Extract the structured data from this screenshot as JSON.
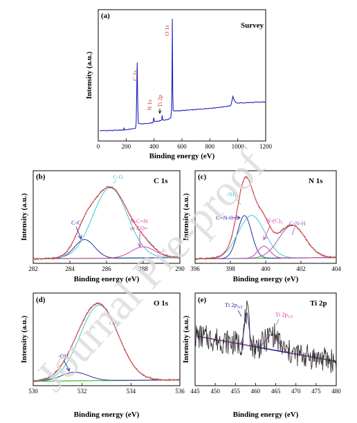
{
  "chart_data": [
    {
      "panel": "(a)",
      "type": "line",
      "title": "Survey",
      "xlabel": "Binding energy (eV)",
      "ylabel": "Intensity (a.u.)",
      "xlim": [
        0,
        1200
      ],
      "ylim": [
        0,
        100
      ],
      "xticks": [
        0,
        200,
        400,
        600,
        800,
        1000,
        1200
      ],
      "series": [
        {
          "color": "#1f1fbf",
          "x": [
            10,
            60,
            100,
            150,
            182,
            185,
            190,
            200,
            250,
            268,
            272,
            279,
            283,
            287,
            292,
            300,
            330,
            370,
            392,
            397,
            403,
            410,
            440,
            455,
            458,
            462,
            470,
            500,
            520,
            525,
            528,
            531,
            534,
            537,
            545,
            560,
            600,
            700,
            800,
            900,
            950,
            965,
            975,
            985,
            1000,
            1050,
            1100,
            1150,
            1200
          ],
          "y": [
            6,
            6.1,
            6.2,
            6.4,
            6.5,
            8.5,
            6.6,
            6.8,
            7.5,
            8,
            13,
            60,
            28,
            12,
            11.5,
            11.4,
            11.6,
            11.9,
            12.5,
            16,
            13.2,
            13.4,
            13.8,
            14.5,
            18,
            15,
            14.4,
            14.8,
            16.5,
            22,
            40,
            95,
            36,
            22,
            21.5,
            21.8,
            22,
            22.8,
            23.8,
            25,
            26,
            33,
            30,
            28.5,
            28,
            28.2,
            28.4,
            28.6,
            28.8
          ]
        }
      ],
      "annotations": [
        {
          "text": "C 1s",
          "x": 284,
          "color": "#c0392b"
        },
        {
          "text": "N 1s",
          "x": 399,
          "color": "#c0392b"
        },
        {
          "text": "Ti 2p",
          "x": 458,
          "color": "#c0392b"
        },
        {
          "text": "O 1s",
          "x": 531,
          "color": "#c0392b"
        }
      ]
    },
    {
      "panel": "(b)",
      "type": "line",
      "title": "C 1s",
      "xlabel": "Binding energy (eV)",
      "ylabel": "Intensity (a.u.)",
      "xlim": [
        282,
        290
      ],
      "ylim": [
        0,
        100
      ],
      "xticks": [
        282,
        284,
        286,
        288,
        290
      ],
      "peaks": [
        {
          "label": "C-C",
          "center": 284.8,
          "height": 22,
          "width": 0.55,
          "color": "#2a2aa0"
        },
        {
          "label": "C-O",
          "center": 286.2,
          "height": 82,
          "width": 0.95,
          "color": "#40c8c8"
        },
        {
          "label": "N-C=N or CO=",
          "center": 288.0,
          "height": 13,
          "width": 0.65,
          "color": "#d63cb0"
        }
      ],
      "annotations": [
        {
          "text": "C-C",
          "color": "#2a2aa0"
        },
        {
          "text": "C-O",
          "color": "#40c8c8"
        },
        {
          "text": "N-C=N",
          "color": "#d63cb0"
        },
        {
          "text": "or CO=",
          "color": "#d63cb0"
        }
      ]
    },
    {
      "panel": "(c)",
      "type": "line",
      "title": "N 1s",
      "xlabel": "Binding energy (eV)",
      "ylabel": "Intensity (a.u.)",
      "xlim": [
        396,
        404
      ],
      "ylim": [
        0,
        100
      ],
      "xticks": [
        396,
        398,
        400,
        402,
        404
      ],
      "peaks": [
        {
          "label": "C=N-C",
          "center": 398.8,
          "height": 50,
          "width": 0.4,
          "color": "#2a2aa0"
        },
        {
          "label": "-NH2",
          "center": 399.2,
          "height": 50,
          "width": 0.75,
          "color": "#40c8c8"
        },
        {
          "label": "N-(C)3",
          "center": 399.9,
          "height": 14,
          "width": 0.35,
          "color": "#d63cb0"
        },
        {
          "label": "C-N-H",
          "center": 401.5,
          "height": 38,
          "width": 0.75,
          "color": "#9b59b6"
        }
      ],
      "annotations": [
        {
          "text": "-NH",
          "sub": "2",
          "color": "#40c8c8"
        },
        {
          "text": "C=N-C",
          "sub": "",
          "color": "#2a2aa0"
        },
        {
          "text": "N-(C)",
          "sub": "3",
          "color": "#d63cb0"
        },
        {
          "text": "C-N-H",
          "sub": "",
          "color": "#9b59b6"
        }
      ]
    },
    {
      "panel": "(d)",
      "type": "line",
      "title": "O 1s",
      "xlabel": "Binding energy (eV)",
      "ylabel": "Intensity (a.u.)",
      "xlim": [
        530,
        536
      ],
      "ylim": [
        0,
        100
      ],
      "xticks": [
        530,
        532,
        534,
        536
      ],
      "peaks": [
        {
          "label": "-OH",
          "center": 531.7,
          "height": 10,
          "width": 0.55,
          "color": "#2a2aa0"
        },
        {
          "label": "C-O",
          "center": 532.7,
          "height": 88,
          "width": 0.78,
          "color": "#40c8c8"
        }
      ],
      "annotations": [
        {
          "text": "-OH",
          "color": "#2a2aa0"
        },
        {
          "text": "C-O",
          "color": "#40c8c8"
        }
      ]
    },
    {
      "panel": "(e)",
      "type": "line",
      "title": "Ti 2p",
      "xlabel": "Binding energy (eV)",
      "ylabel": "Intensity (a.u.)",
      "xlim": [
        445,
        480
      ],
      "ylim": [
        0,
        100
      ],
      "xticks": [
        445,
        450,
        455,
        460,
        465,
        470,
        475,
        480
      ],
      "peaks": [
        {
          "label": "Ti 2p3/2",
          "center": 457.8,
          "height": 38,
          "width": 0.55,
          "color": "#2a2aa0"
        },
        {
          "label": "Ti 2p1/2",
          "center": 464.2,
          "height": 18,
          "width": 1.5,
          "color": "#d63cb0"
        }
      ],
      "annotations": [
        {
          "text": "Ti 2p",
          "sub": "3/2",
          "color": "#2a2aa0"
        },
        {
          "text": "Ti 2p",
          "sub": "1/2",
          "color": "#d63cb0"
        }
      ]
    }
  ],
  "colors": {
    "raw": "#555555",
    "envelope": "#e05050",
    "background": "#27c427",
    "survey": "#1f1fbf",
    "axis": "#000000",
    "watermark": "#d8d8d8"
  },
  "watermark": "Journal Pre-proof"
}
